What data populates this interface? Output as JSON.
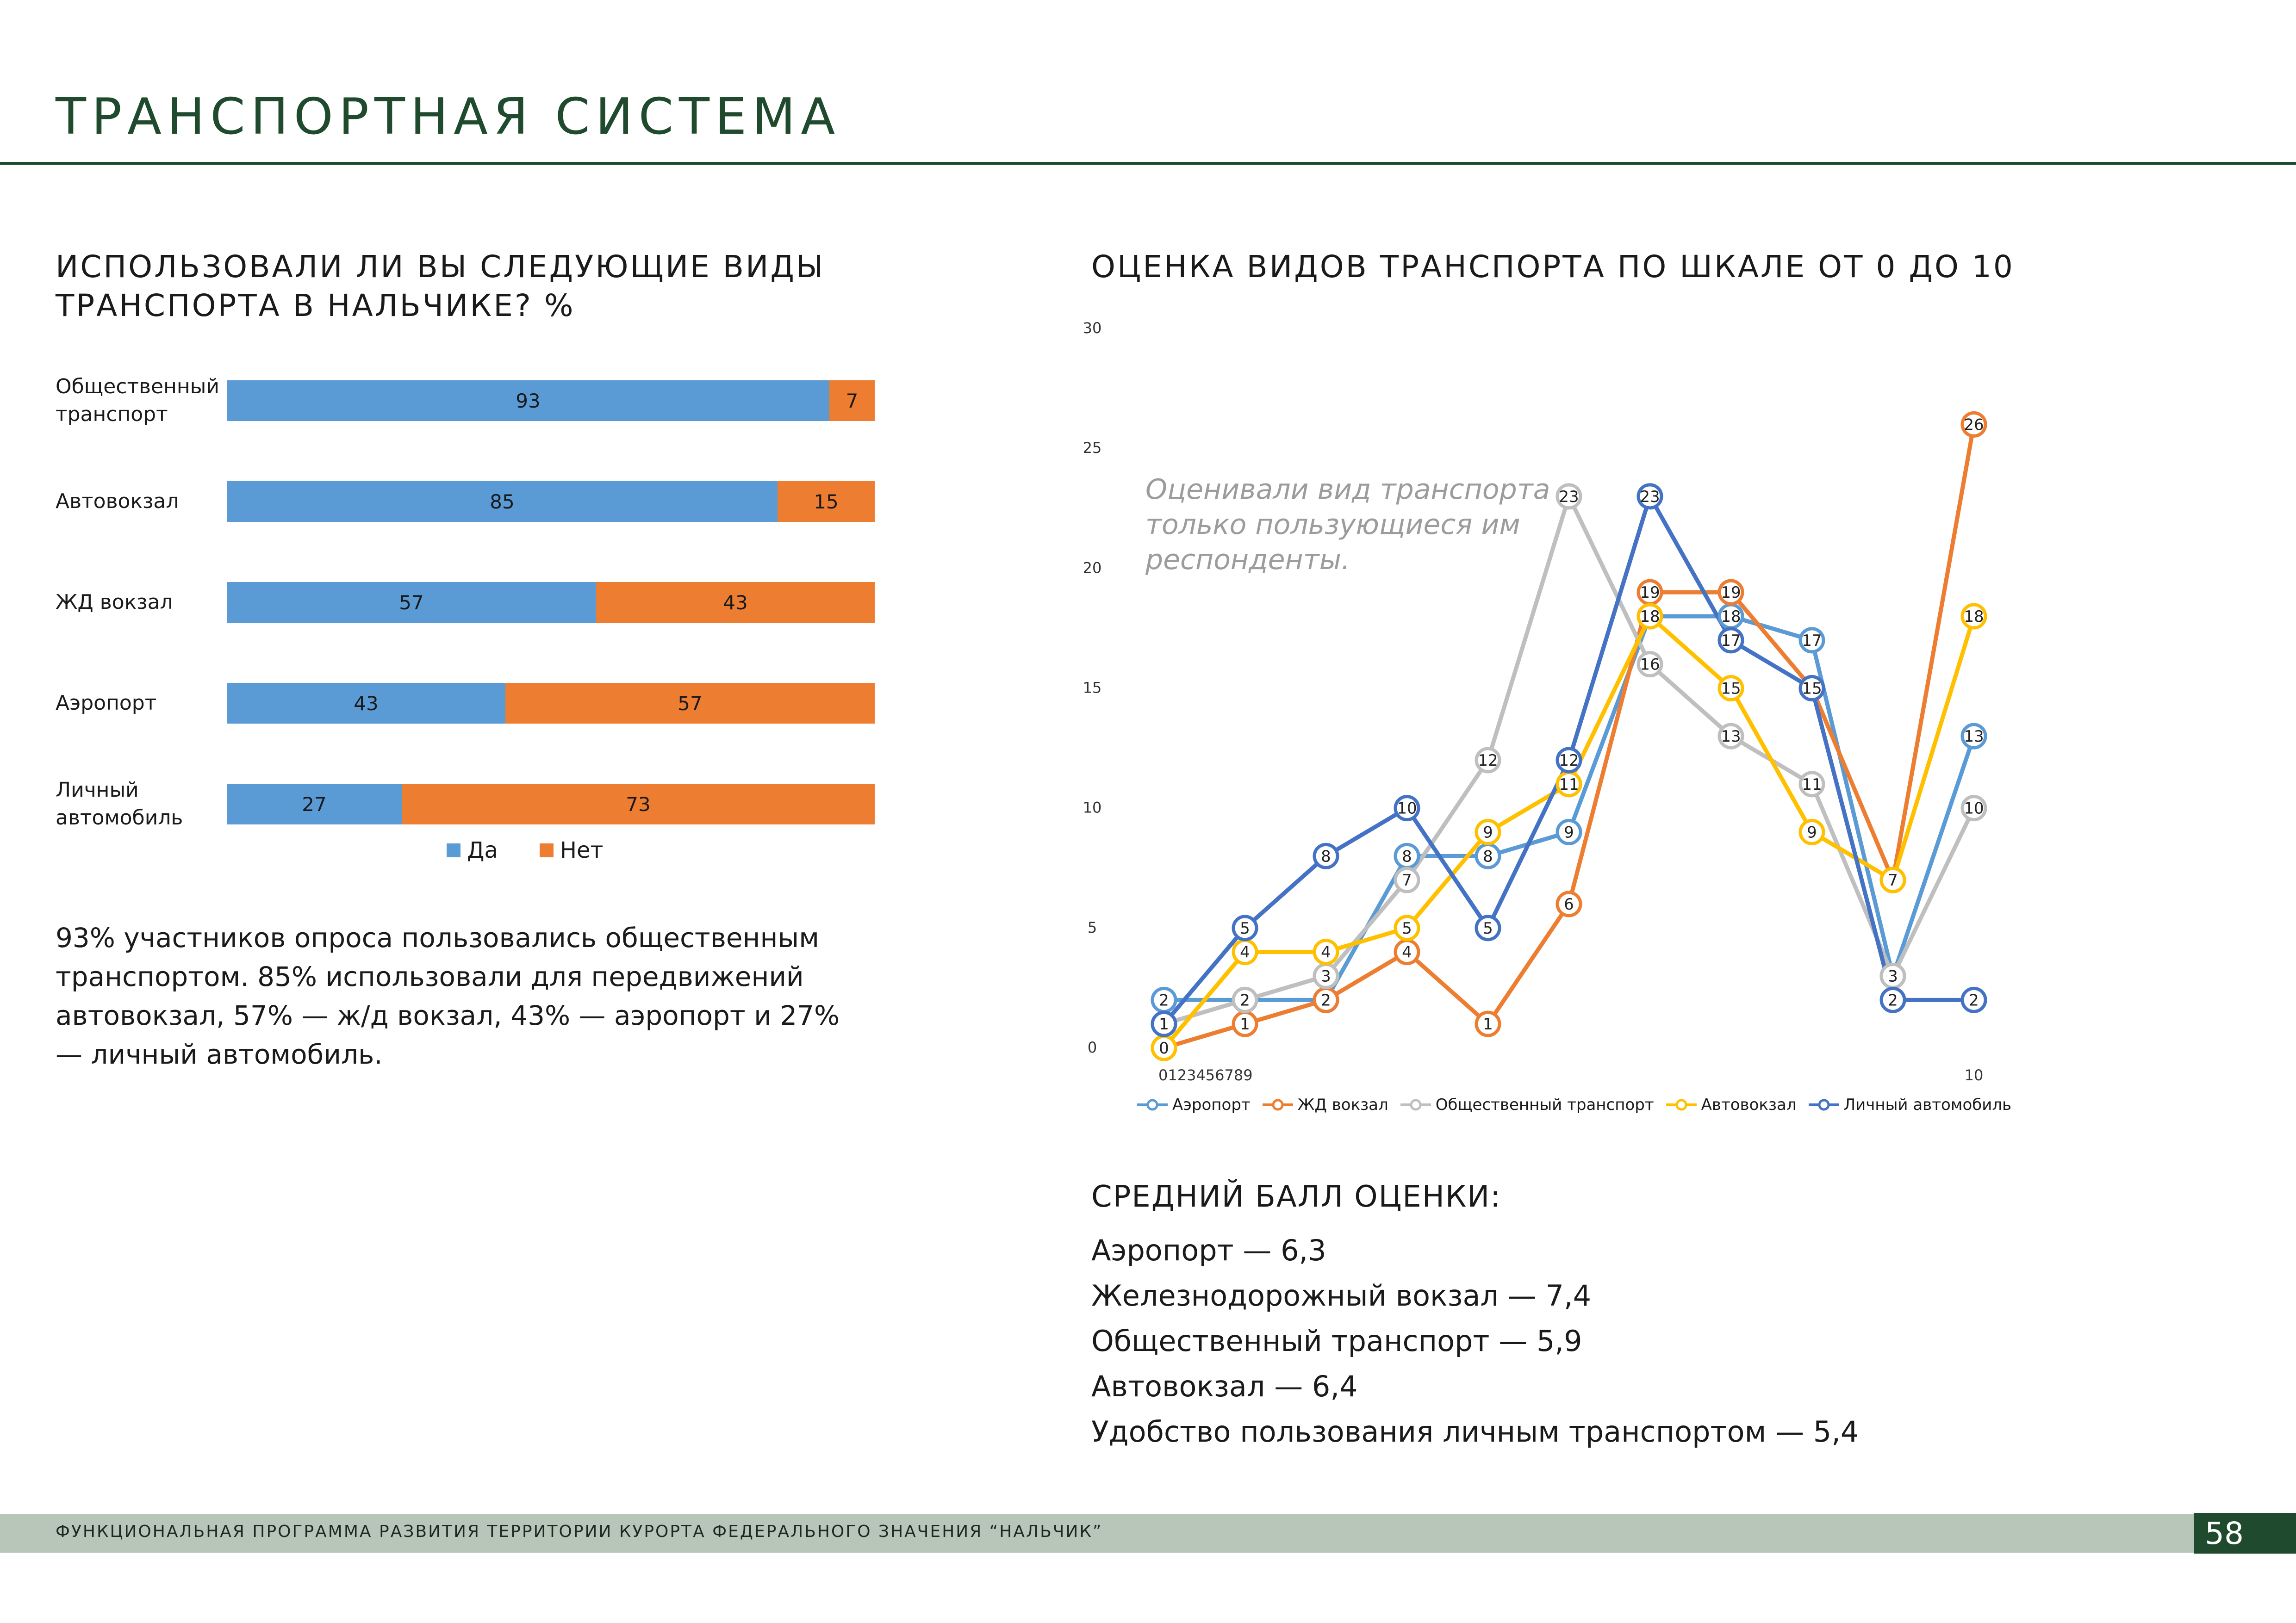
{
  "page": {
    "title": "ТРАНСПОРТНАЯ СИСТЕМА",
    "footer": "ФУНКЦИОНАЛЬНАЯ ПРОГРАММА РАЗВИТИЯ ТЕРРИТОРИИ КУРОРТА ФЕДЕРАЛЬНОГО ЗНАЧЕНИЯ “НАЛЬЧИК”",
    "page_number": "58"
  },
  "left": {
    "heading_line1": "ИСПОЛЬЗОВАЛИ ЛИ ВЫ СЛЕДУЮЩИЕ ВИДЫ",
    "heading_line2": "ТРАНСПОРТА В НАЛЬЧИКЕ? %",
    "paragraph": "93% участников опроса пользовались общественным транспортом. 85% использовали для передвижений автовокзал, 57% — ж/д вокзал, 43% — аэропорт и 27% — личный автомобиль."
  },
  "right": {
    "heading": "ОЦЕНКА ВИДОВ ТРАНСПОРТА ПО ШКАЛЕ ОТ 0 ДО 10",
    "note": "Оценивали вид транспорта только пользующиеся им респонденты.",
    "avg_title": "СРЕДНИЙ БАЛЛ ОЦЕНКИ:",
    "avg_lines": [
      "Аэропорт —  6,3",
      "Железнодорожный вокзал — 7,4",
      "Общественный транспорт — 5,9",
      "Автовокзал — 6,4",
      "Удобство пользования личным транспортом — 5,4"
    ]
  },
  "chart_data": [
    {
      "type": "bar",
      "stacked": true,
      "orientation": "horizontal",
      "title": "ИСПОЛЬЗОВАЛИ ЛИ ВЫ СЛЕДУЮЩИЕ ВИДЫ ТРАНСПОРТА В НАЛЬЧИКЕ? %",
      "categories": [
        [
          "Общественный",
          "транспорт"
        ],
        [
          "Автовокзал"
        ],
        [
          "ЖД вокзал"
        ],
        [
          "Аэропорт"
        ],
        [
          "Личный",
          "автомобиль"
        ]
      ],
      "series": [
        {
          "name": "Да",
          "color": "#5b9bd5",
          "values": [
            93,
            85,
            57,
            43,
            27
          ]
        },
        {
          "name": "Нет",
          "color": "#ed7d31",
          "values": [
            7,
            15,
            43,
            57,
            73
          ]
        }
      ],
      "legend": "bottom"
    },
    {
      "type": "line",
      "title": "ОЦЕНКА ВИДОВ ТРАНСПОРТА ПО ШКАЛЕ ОТ 0 ДО 10",
      "x": [
        0,
        1,
        2,
        3,
        4,
        5,
        6,
        7,
        8,
        9,
        10
      ],
      "x_tick_text": "0123456789",
      "x_tick_last": "10",
      "y_ticks": [
        0,
        5,
        10,
        15,
        20,
        25,
        30
      ],
      "ylim": [
        0,
        30
      ],
      "legend": "bottom",
      "series": [
        {
          "name": "Аэропорт",
          "color": "#5b9bd5",
          "values": [
            2,
            2,
            2,
            8,
            8,
            9,
            18,
            18,
            17,
            3,
            13
          ]
        },
        {
          "name": "ЖД вокзал",
          "color": "#ed7d31",
          "values": [
            0,
            1,
            2,
            4,
            1,
            6,
            19,
            19,
            15,
            7,
            26
          ]
        },
        {
          "name": "Общественный транспорт",
          "color": "#bfbfbf",
          "values": [
            1,
            2,
            3,
            7,
            12,
            23,
            16,
            13,
            11,
            3,
            10
          ]
        },
        {
          "name": "Автовокзал",
          "color": "#ffc000",
          "values": [
            0,
            4,
            4,
            5,
            9,
            11,
            18,
            15,
            9,
            7,
            18
          ]
        },
        {
          "name": "Личный автомобиль",
          "color": "#4472c4",
          "values": [
            1,
            5,
            8,
            10,
            5,
            12,
            23,
            17,
            15,
            2,
            2
          ]
        }
      ]
    }
  ]
}
